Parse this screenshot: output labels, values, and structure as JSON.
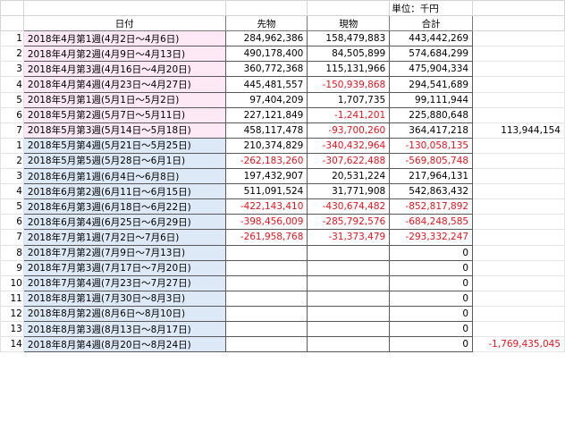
{
  "sheet": {
    "unit_label": "単位：千円",
    "headers": [
      "日付",
      "先物",
      "現物",
      "合計"
    ],
    "rows": [
      {
        "num": "1",
        "date": "2018年4月第1週(4月2日～4月6日)",
        "futures": "284,962,386",
        "spot": "158,479,883",
        "total": "443,442,269",
        "side": "",
        "band": "pink"
      },
      {
        "num": "2",
        "date": "2018年4月第2週(4月9日～4月13日)",
        "futures": "490,178,400",
        "spot": "84,505,899",
        "total": "574,684,299",
        "side": "",
        "band": "pink"
      },
      {
        "num": "3",
        "date": "2018年4月第3週(4月16日～4月20日)",
        "futures": "360,772,368",
        "spot": "115,131,966",
        "total": "475,904,334",
        "side": "",
        "band": "pink"
      },
      {
        "num": "4",
        "date": "2018年4月第4週(4月23日～4月27日)",
        "futures": "445,481,557",
        "spot": "-150,939,868",
        "total": "294,541,689",
        "side": "",
        "band": "pink"
      },
      {
        "num": "5",
        "date": "2018年5月第1週(5月1日～5月2日)",
        "futures": "97,404,209",
        "spot": "1,707,735",
        "total": "99,111,944",
        "side": "",
        "band": "pink"
      },
      {
        "num": "6",
        "date": "2018年5月第2週(5月7日～5月11日)",
        "futures": "227,121,849",
        "spot": "-1,241,201",
        "total": "225,880,648",
        "side": "",
        "band": "pink"
      },
      {
        "num": "7",
        "date": "2018年5月第3週(5月14日～5月18日)",
        "futures": "458,117,478",
        "spot": "-93,700,260",
        "total": "364,417,218",
        "side": "113,944,154",
        "band": "pink"
      },
      {
        "num": "1",
        "date": "2018年5月第4週(5月21日～5月25日)",
        "futures": "210,374,829",
        "spot": "-340,432,964",
        "total": "-130,058,135",
        "side": "",
        "band": "blue"
      },
      {
        "num": "2",
        "date": "2018年5月第5週(5月28日～6月1日)",
        "futures": "-262,183,260",
        "spot": "-307,622,488",
        "total": "-569,805,748",
        "side": "",
        "band": "blue"
      },
      {
        "num": "3",
        "date": "2018年6月第1週(6月4日～6月8日)",
        "futures": "197,432,907",
        "spot": "20,531,224",
        "total": "217,964,131",
        "side": "",
        "band": "blue"
      },
      {
        "num": "4",
        "date": "2018年6月第2週(6月11日～6月15日)",
        "futures": "511,091,524",
        "spot": "31,771,908",
        "total": "542,863,432",
        "side": "",
        "band": "blue"
      },
      {
        "num": "5",
        "date": "2018年6月第3週(6月18日～6月22日)",
        "futures": "-422,143,410",
        "spot": "-430,674,482",
        "total": "-852,817,892",
        "side": "",
        "band": "blue"
      },
      {
        "num": "6",
        "date": "2018年6月第4週(6月25日～6月29日)",
        "futures": "-398,456,009",
        "spot": "-285,792,576",
        "total": "-684,248,585",
        "side": "",
        "band": "blue"
      },
      {
        "num": "7",
        "date": "2018年7月第1週(7月2日～7月6日)",
        "futures": "-261,958,768",
        "spot": "-31,373,479",
        "total": "-293,332,247",
        "side": "",
        "band": "blue"
      },
      {
        "num": "8",
        "date": "2018年7月第2週(7月9日～7月13日)",
        "futures": "",
        "spot": "",
        "total": "0",
        "side": "",
        "band": "blue"
      },
      {
        "num": "9",
        "date": "2018年7月第3週(7月17日～7月20日)",
        "futures": "",
        "spot": "",
        "total": "0",
        "side": "",
        "band": "blue"
      },
      {
        "num": "10",
        "date": "2018年7月第4週(7月23日～7月27日)",
        "futures": "",
        "spot": "",
        "total": "0",
        "side": "",
        "band": "blue"
      },
      {
        "num": "11",
        "date": "2018年8月第1週(7月30日～8月3日)",
        "futures": "",
        "spot": "",
        "total": "0",
        "side": "",
        "band": "blue"
      },
      {
        "num": "12",
        "date": "2018年8月第2週(8月6日～8月10日)",
        "futures": "",
        "spot": "",
        "total": "0",
        "side": "",
        "band": "blue"
      },
      {
        "num": "13",
        "date": "2018年8月第3週(8月13日～8月17日)",
        "futures": "",
        "spot": "",
        "total": "0",
        "side": "",
        "band": "blue"
      },
      {
        "num": "14",
        "date": "2018年8月第4週(8月20日～8月24日)",
        "futures": "",
        "spot": "",
        "total": "0",
        "side": "-1,769,435,045",
        "band": "blue"
      }
    ]
  }
}
